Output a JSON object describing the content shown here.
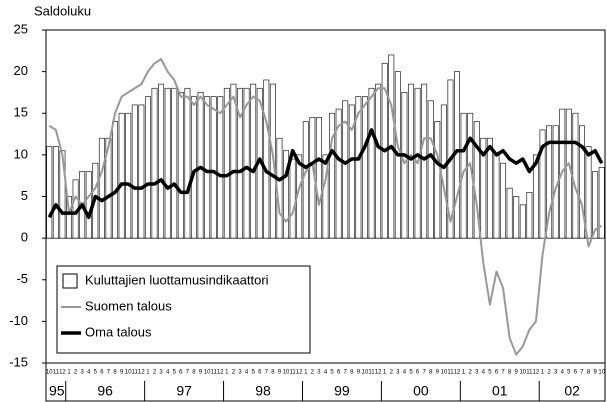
{
  "chart_data": {
    "type": "bar",
    "title": "Saldoluku",
    "categories": [
      "10",
      "11",
      "12",
      "1",
      "2",
      "3",
      "4",
      "5",
      "6",
      "7",
      "8",
      "9",
      "10",
      "11",
      "12",
      "1",
      "2",
      "3",
      "4",
      "5",
      "6",
      "7",
      "8",
      "9",
      "10",
      "11",
      "12",
      "1",
      "2",
      "3",
      "4",
      "5",
      "6",
      "7",
      "8",
      "9",
      "10",
      "11",
      "12",
      "1",
      "2",
      "3",
      "4",
      "5",
      "6",
      "7",
      "8",
      "9",
      "10",
      "11",
      "12",
      "1",
      "2",
      "3",
      "4",
      "5",
      "6",
      "7",
      "8",
      "9",
      "10",
      "11",
      "12",
      "1",
      "2",
      "3",
      "4",
      "5",
      "6",
      "7",
      "8",
      "9",
      "10",
      "11",
      "12",
      "1",
      "2",
      "3",
      "4",
      "5",
      "6",
      "7",
      "8",
      "9",
      "10"
    ],
    "years": [
      "95",
      "96",
      "97",
      "98",
      "99",
      "00",
      "01",
      "02"
    ],
    "ylim": [
      -15,
      25
    ],
    "yticks": [
      -15,
      -10,
      -5,
      0,
      5,
      10,
      15,
      20,
      25
    ],
    "grid": false,
    "legend": "lower left",
    "series": [
      {
        "name": "Kuluttajien luottamusindikaattori",
        "type": "bar",
        "color": "#ffffff",
        "values": [
          11,
          11,
          10.5,
          5,
          7,
          8,
          8,
          9,
          12,
          12,
          14,
          15,
          15,
          16,
          16,
          17,
          18,
          18.5,
          18,
          18,
          17.5,
          18,
          17,
          17.5,
          17,
          17,
          17,
          18,
          18.5,
          18,
          18,
          18.5,
          18,
          19,
          18.5,
          12,
          10.5,
          9.5,
          10,
          14,
          14.5,
          14.5,
          10,
          15,
          15.5,
          16.5,
          16,
          17,
          17,
          18,
          18.5,
          21,
          22,
          20,
          17.5,
          18.5,
          18,
          18.5,
          16.5,
          14,
          16,
          19,
          20,
          15,
          15,
          14,
          12,
          12,
          10,
          9,
          6,
          5,
          4,
          5.5,
          10,
          13,
          13.5,
          13.5,
          15.5,
          15.5,
          15,
          13.5,
          11,
          8,
          8.5
        ]
      },
      {
        "name": "Suomen talous",
        "type": "line",
        "color": "#999999",
        "line_width": 2,
        "values": [
          13.5,
          13,
          10,
          3,
          5,
          4,
          5,
          6,
          8,
          11,
          15,
          17,
          17.5,
          18,
          18.5,
          20,
          21,
          21.5,
          20,
          19,
          17,
          17,
          16,
          17,
          16,
          15.5,
          15,
          16,
          17,
          14.5,
          16,
          17,
          16.5,
          14,
          10,
          3,
          2,
          3,
          6,
          8,
          9,
          4,
          7,
          12,
          13.5,
          14,
          13,
          15,
          16,
          17,
          18,
          18,
          16,
          11,
          9,
          10,
          9,
          12,
          12,
          10,
          6,
          2,
          5,
          8,
          9,
          4,
          -3,
          -8,
          -4,
          -6,
          -12,
          -14,
          -13,
          -11,
          -10,
          -2,
          3,
          6,
          8,
          9,
          6,
          4,
          -1,
          1,
          1.5
        ]
      },
      {
        "name": "Oma talous",
        "type": "line",
        "color": "#000000",
        "line_width": 3.5,
        "values": [
          2.5,
          4,
          3,
          3,
          3,
          4,
          2.5,
          5,
          4.5,
          5,
          5.5,
          6.5,
          6.5,
          6,
          6,
          6.5,
          6.5,
          7,
          6,
          6.5,
          5.5,
          5.5,
          8,
          8.5,
          8,
          8,
          7.5,
          7.5,
          8,
          8,
          8.5,
          8,
          9.5,
          8,
          7.5,
          7,
          7.5,
          10.5,
          9,
          8.5,
          9,
          9.5,
          9,
          10.5,
          9.5,
          9,
          9.5,
          9.5,
          11,
          13,
          11,
          10.5,
          11,
          10,
          10,
          9.5,
          10,
          9.5,
          10,
          9,
          8.5,
          9.5,
          10.5,
          10.5,
          12,
          11,
          10,
          11,
          10,
          10.5,
          9.5,
          9,
          9.5,
          8,
          9,
          11,
          11.5,
          11.5,
          11.5,
          11.5,
          11.5,
          11,
          10,
          10.5,
          9
        ]
      }
    ]
  }
}
